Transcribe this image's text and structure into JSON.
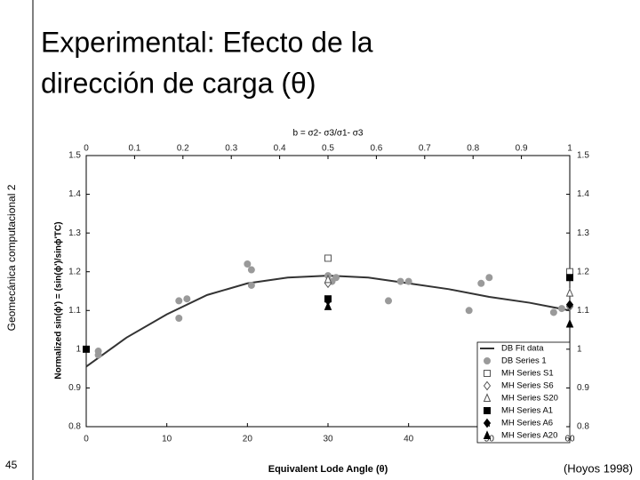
{
  "slide": {
    "title_line1": "Experimental: Efecto de la",
    "title_line2": "dirección de carga (θ)",
    "side_label": "Geomecánica computacional 2",
    "page_number": "45",
    "citation": "(Hoyos 1998)"
  },
  "chart_data": {
    "type": "scatter",
    "x_label": "Equivalent Lode Angle (θ)",
    "y_label": "Normalized sin(ϕ') = (sin(ϕ')/sinϕ'TC)",
    "x2_label": "b = σ2- σ3/σ1- σ3",
    "xlim": [
      0,
      60
    ],
    "xticks": [
      0,
      10,
      20,
      30,
      40,
      50,
      60
    ],
    "x2lim": [
      0,
      1
    ],
    "x2ticks": [
      0,
      0.1,
      0.2,
      0.3,
      0.4,
      0.5,
      0.6,
      0.7,
      0.8,
      0.9,
      1
    ],
    "ylim": [
      0.8,
      1.5
    ],
    "yticks": [
      0.8,
      0.9,
      1,
      1.1,
      1.2,
      1.3,
      1.4,
      1.5
    ],
    "y2lim": [
      0.8,
      1.5
    ],
    "y2ticks": [
      0.8,
      0.9,
      1,
      1.1,
      1.2,
      1.3,
      1.4,
      1.5
    ],
    "legend": "lower right",
    "series": [
      {
        "name": "DB Fit data",
        "marker": "line",
        "filled": true,
        "color": "#333333",
        "x": [
          0,
          5,
          10,
          15,
          20,
          25,
          30,
          35,
          40,
          45,
          50,
          55,
          60
        ],
        "values": [
          0.955,
          1.03,
          1.09,
          1.14,
          1.17,
          1.185,
          1.19,
          1.185,
          1.17,
          1.155,
          1.135,
          1.12,
          1.1
        ]
      },
      {
        "name": "DB Series 1",
        "marker": "circle",
        "filled": true,
        "color": "#9a9a9a",
        "x": [
          1.5,
          1.5,
          11.5,
          11.5,
          12.5,
          20,
          20.5,
          20.5,
          30,
          30.5,
          31,
          37.5,
          39,
          40,
          47.5,
          49,
          50,
          58,
          59
        ],
        "values": [
          0.995,
          0.985,
          1.125,
          1.08,
          1.13,
          1.22,
          1.205,
          1.165,
          1.19,
          1.175,
          1.185,
          1.125,
          1.175,
          1.175,
          1.1,
          1.17,
          1.185,
          1.095,
          1.105
        ]
      },
      {
        "name": "MH Series S1",
        "marker": "square",
        "filled": false,
        "color": "#555555",
        "x": [
          30,
          60
        ],
        "values": [
          1.235,
          1.2
        ]
      },
      {
        "name": "MH Series S6",
        "marker": "diamond",
        "filled": false,
        "color": "#555555",
        "x": [
          30,
          60
        ],
        "values": [
          1.17,
          1.11
        ]
      },
      {
        "name": "MH Series S20",
        "marker": "triangle",
        "filled": false,
        "color": "#555555",
        "x": [
          30,
          60
        ],
        "values": [
          1.18,
          1.145
        ]
      },
      {
        "name": "MH Series A1",
        "marker": "square",
        "filled": true,
        "color": "#000000",
        "x": [
          0,
          30,
          60
        ],
        "values": [
          1,
          1.13,
          1.185
        ]
      },
      {
        "name": "MH Series A6",
        "marker": "diamond",
        "filled": true,
        "color": "#000000",
        "x": [
          30,
          60
        ],
        "values": [
          1.125,
          1.115
        ]
      },
      {
        "name": "MH Series A20",
        "marker": "triangle",
        "filled": true,
        "color": "#000000",
        "x": [
          30,
          60
        ],
        "values": [
          1.11,
          1.065
        ]
      }
    ]
  }
}
